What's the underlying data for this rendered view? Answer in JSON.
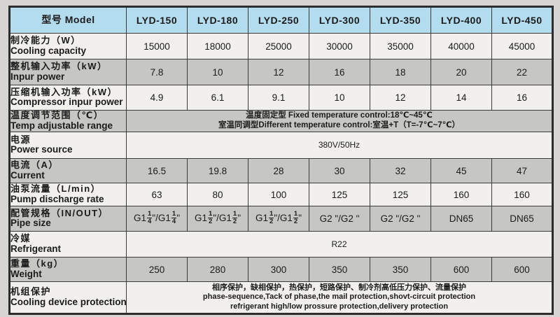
{
  "colors": {
    "page_bg": "#d6d5d1",
    "header_bg": "#b3dcee",
    "row_light_bg": "#f1f0ec",
    "row_dark_bg": "#c6c7c3",
    "border": "#3a3a3a",
    "text": "#1b1b1b"
  },
  "table": {
    "header": {
      "label": "型号 Model",
      "models": [
        "LYD-150",
        "LYD-180",
        "LYD-250",
        "LYD-300",
        "LYD-350",
        "LYD-400",
        "LYD-450"
      ]
    },
    "rows": [
      {
        "zh": "制冷能力（W）",
        "en": "Cooling capacity",
        "values": [
          "15000",
          "18000",
          "25000",
          "30000",
          "35000",
          "40000",
          "45000"
        ],
        "shade": "light"
      },
      {
        "zh": "整机输入功率（kW）",
        "en": "Inpur power",
        "values": [
          "7.8",
          "10",
          "12",
          "16",
          "18",
          "20",
          "22"
        ],
        "shade": "dark"
      },
      {
        "zh": "压缩机输入功率（kW）",
        "en": "Compressor inpur power",
        "values": [
          "4.9",
          "6.1",
          "9.1",
          "10",
          "12",
          "14",
          "16"
        ],
        "shade": "light"
      },
      {
        "zh": "温度调节范围（℃）",
        "en": "Temp adjustable range",
        "span_lines": [
          "温度固定型 Fixed temperature control:18℃~45℃",
          "室温同调型Different temperature control:室温+T（T=-7℃~7℃）"
        ],
        "span_style": "bold-lines",
        "shade": "dark"
      },
      {
        "zh": "电源",
        "en": "Power source",
        "span_lines": [
          "380V/50Hz"
        ],
        "span_style": "",
        "shade": "light"
      },
      {
        "zh": "电流（A）",
        "en": "Current",
        "values": [
          "16.5",
          "19.8",
          "28",
          "30",
          "32",
          "45",
          "47"
        ],
        "shade": "dark"
      },
      {
        "zh": "油泵流量（L/min）",
        "en": "Pump discharge rate",
        "values": [
          "63",
          "80",
          "100",
          "125",
          "125",
          "160",
          "160"
        ],
        "shade": "light"
      },
      {
        "zh": "配管规格（IN/OUT）",
        "en": "Pipe size",
        "values": [
          "G1{1/4}\"/G1{1/4}\"",
          "G1{1/2}\"/G1{1/2}\"",
          "G1{1/2}\"/G1{1/2}\"",
          "G2 \"/G2 \"",
          "G2 \"/G2 \"",
          "DN65",
          "DN65"
        ],
        "shade": "dark"
      },
      {
        "zh": "冷媒",
        "en": "Refrigerant",
        "span_lines": [
          "R22"
        ],
        "span_style": "",
        "shade": "light"
      },
      {
        "zh": "重量（kg）",
        "en": "Weight",
        "values": [
          "250",
          "280",
          "300",
          "350",
          "350",
          "600",
          "600"
        ],
        "shade": "dark"
      },
      {
        "zh": "机组保护",
        "en": "Cooling device protection",
        "span_lines": [
          "相序保护，缺相保护，热保护，短路保护、制冷剂高低压力保护、流量保护",
          "phase-sequence,Tack of phase,the mail protection,shovt-circuit protection",
          "refrigerant high/low prossure protection,delivery protection"
        ],
        "span_style": "small-lines",
        "shade": "light"
      }
    ]
  }
}
